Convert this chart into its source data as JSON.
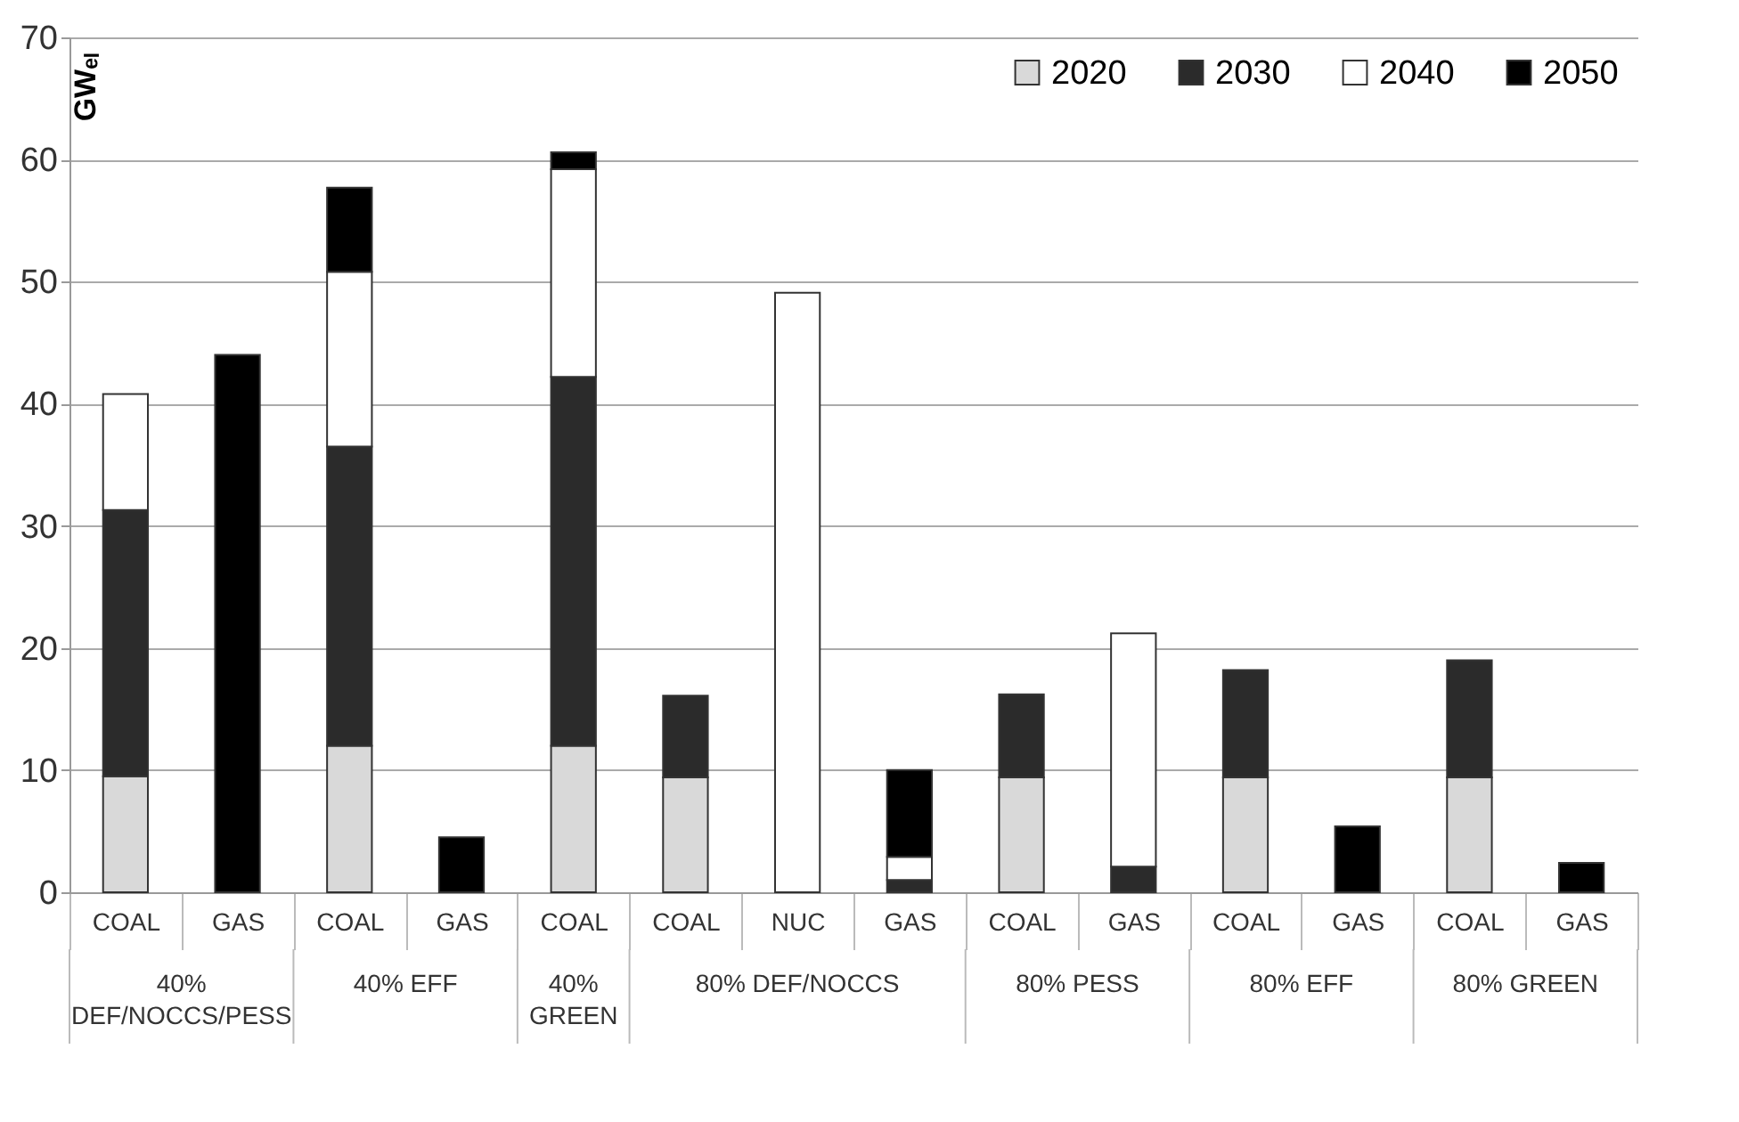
{
  "chart_data": {
    "type": "bar",
    "stacked": true,
    "ylabel": "GWₑₗ",
    "categories": [
      "COAL",
      "GAS",
      "COAL",
      "GAS",
      "COAL",
      "COAL",
      "NUC",
      "GAS",
      "COAL",
      "GAS",
      "COAL",
      "GAS",
      "COAL",
      "GAS"
    ],
    "series": [
      {
        "name": "2020",
        "color": "#d9d9d9",
        "values": [
          9.5,
          null,
          12,
          null,
          12,
          9.4,
          null,
          null,
          9.4,
          null,
          9.4,
          null,
          9.4,
          null
        ]
      },
      {
        "name": "2030",
        "color": "#2b2b2b",
        "values": [
          21.8,
          null,
          24.5,
          null,
          30.2,
          6.7,
          null,
          1,
          6.8,
          2.1,
          8.8,
          null,
          9.6,
          null
        ]
      },
      {
        "name": "2040",
        "color": "#ffffff",
        "values": [
          9.5,
          null,
          14.3,
          null,
          17,
          null,
          49.1,
          1.9,
          null,
          19.1,
          null,
          null,
          null,
          null
        ]
      },
      {
        "name": "2050",
        "color": "#000000",
        "values": [
          null,
          44,
          6.9,
          4.5,
          1.4,
          null,
          null,
          7.1,
          null,
          null,
          null,
          5.4,
          null,
          2.4
        ]
      }
    ],
    "ylim": [
      0,
      70
    ],
    "yticks": [
      0,
      10,
      20,
      30,
      40,
      50,
      60,
      70
    ],
    "grid": "y",
    "legend": "top right",
    "annotations": [
      "40% DEF/NOCCS/PESS",
      "40% EFF",
      "40% GREEN",
      "80% DEF/NOCCS",
      "80% PESS",
      "80% EFF",
      "80% GREEN"
    ]
  }
}
